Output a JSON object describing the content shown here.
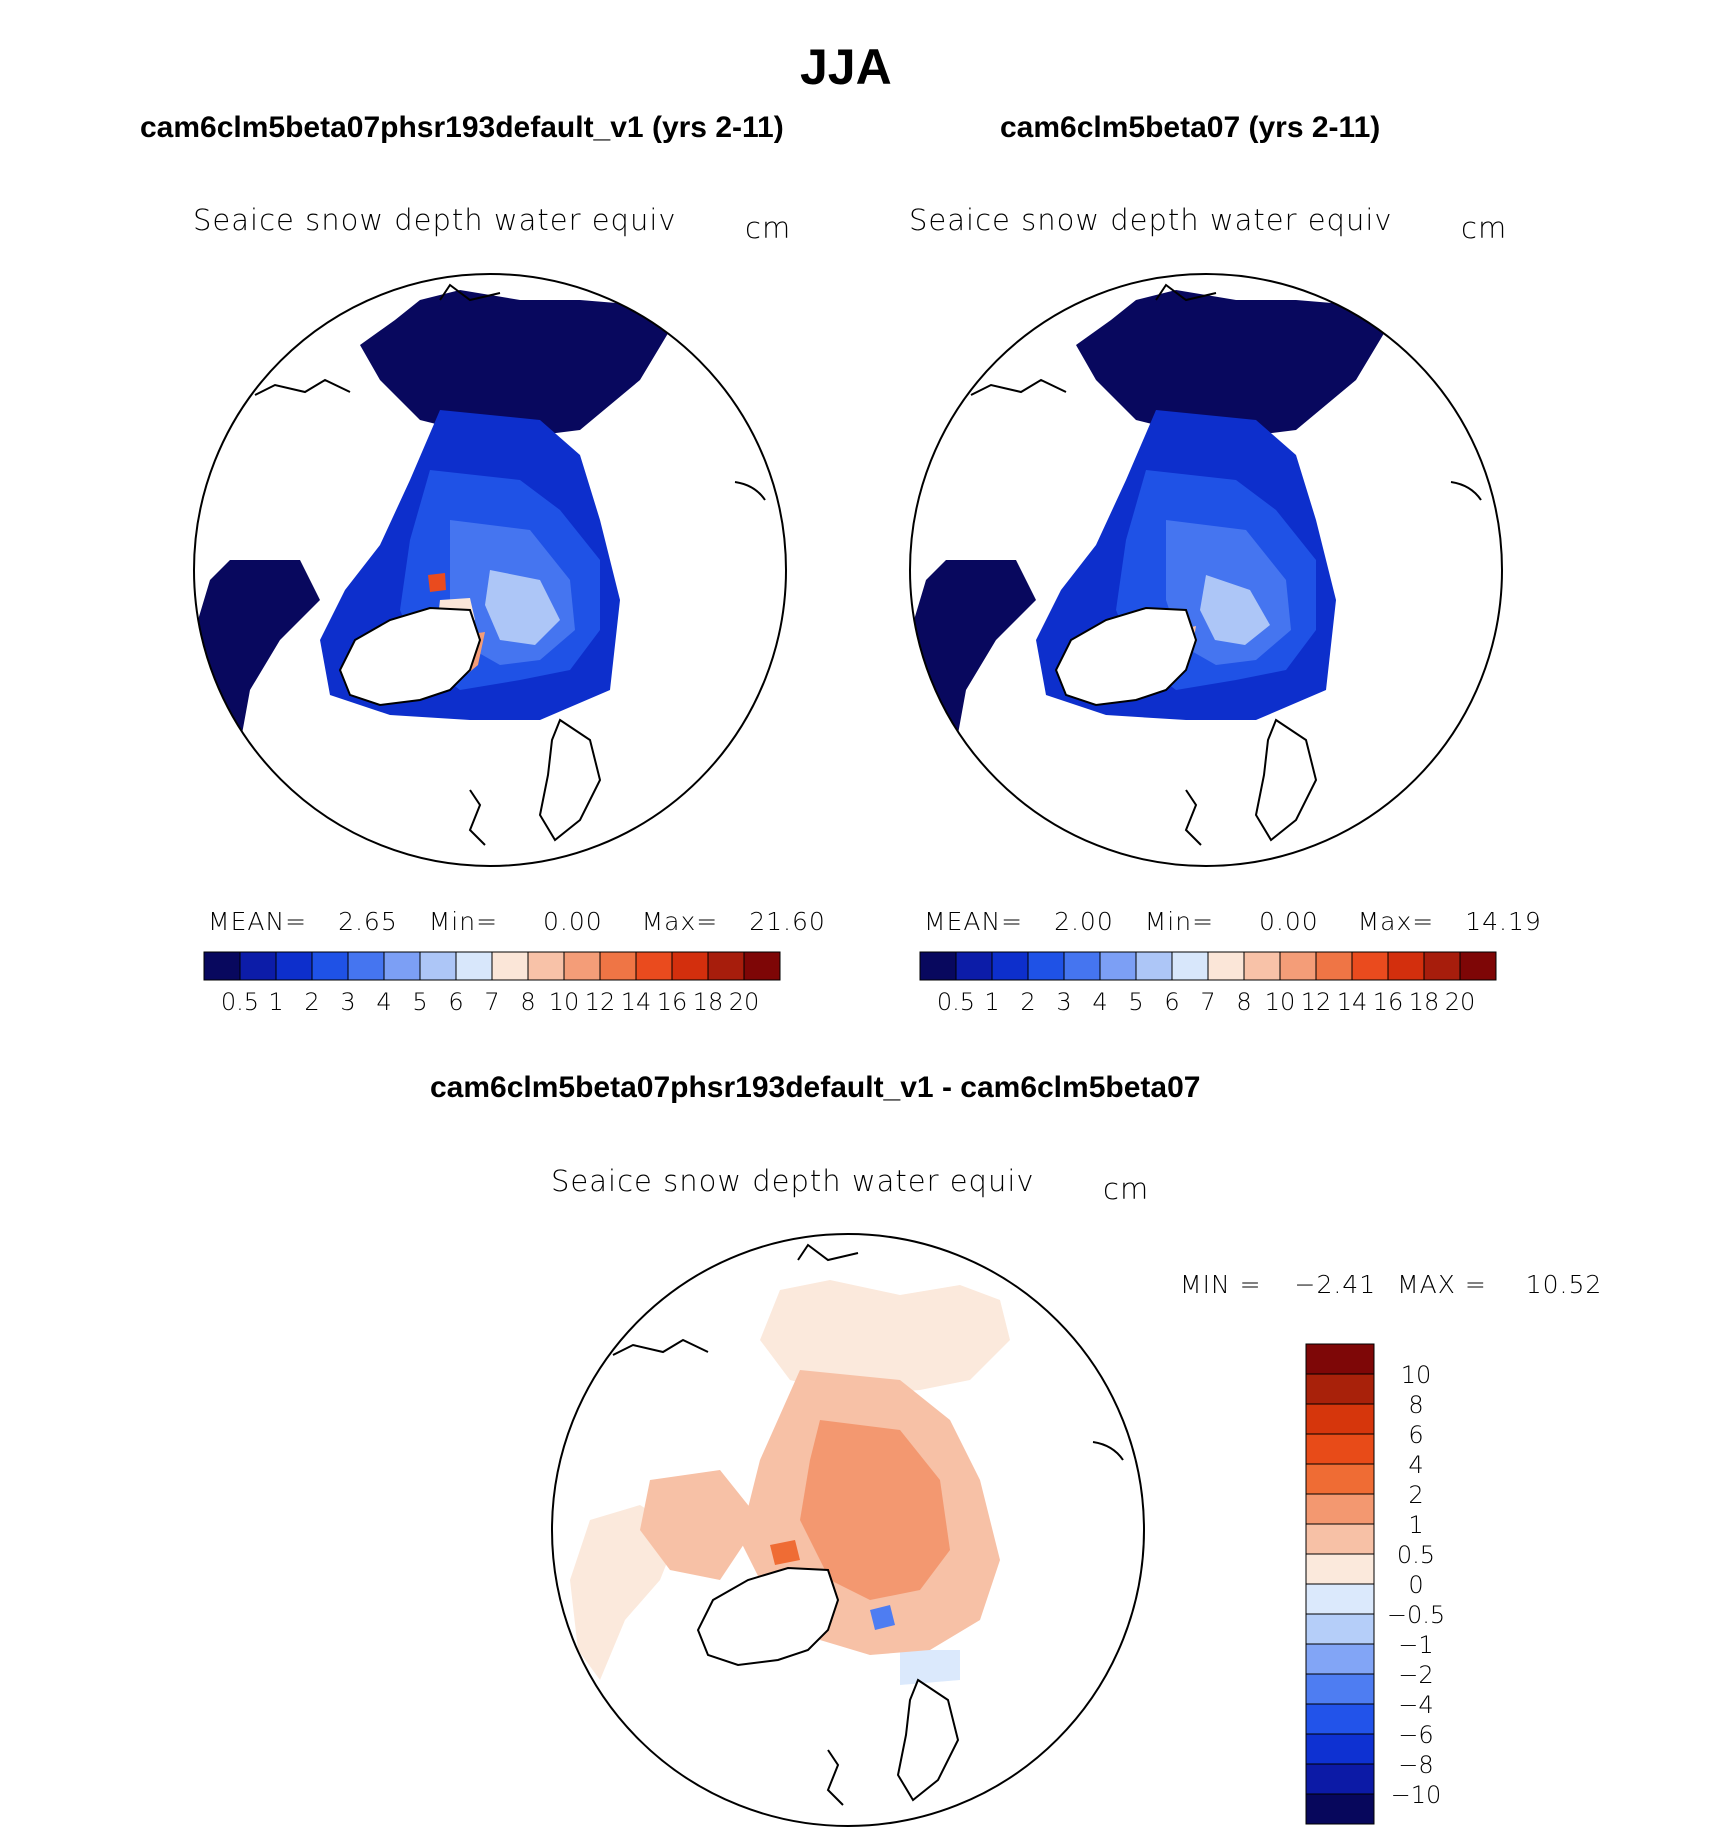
{
  "page_title": "JJA",
  "colors": {
    "seq": [
      "#08085e",
      "#0c1ca8",
      "#0d2fcc",
      "#1f52e6",
      "#4575f0",
      "#7c9ff5",
      "#adc6f7",
      "#d8e7fb",
      "#fbe6d8",
      "#f8c2a8",
      "#f49d78",
      "#ef7545",
      "#ea4b1e",
      "#d32f0d",
      "#a71d0c",
      "#7e0606"
    ],
    "div": [
      "#07075c",
      "#0c1aa6",
      "#0e31d2",
      "#2253ea",
      "#4e7df2",
      "#82a5f6",
      "#b5cef9",
      "#dbe9fc",
      "#fbe9dc",
      "#f7c1a6",
      "#f39870",
      "#ef6c34",
      "#e84b18",
      "#d6360c",
      "#a8210a",
      "#7e0707"
    ]
  },
  "chart_data": [
    {
      "type": "polar-map",
      "title": "cam6clm5beta07phsr193default_v1 (yrs 2-11)",
      "variable": "Seaice snow depth water equiv",
      "units": "cm",
      "stats": {
        "mean_label": "MEAN=",
        "mean": "2.65",
        "min_label": "Min=",
        "min": "0.00",
        "max_label": "Max=",
        "max": "21.60"
      },
      "colorbar_ticks": [
        "0.5",
        "1",
        "2",
        "3",
        "4",
        "5",
        "6",
        "7",
        "8",
        "10",
        "12",
        "14",
        "16",
        "18",
        "20"
      ]
    },
    {
      "type": "polar-map",
      "title": "cam6clm5beta07 (yrs 2-11)",
      "variable": "Seaice snow depth water equiv",
      "units": "cm",
      "stats": {
        "mean_label": "MEAN=",
        "mean": "2.00",
        "min_label": "Min=",
        "min": "0.00",
        "max_label": "Max=",
        "max": "14.19"
      },
      "colorbar_ticks": [
        "0.5",
        "1",
        "2",
        "3",
        "4",
        "5",
        "6",
        "7",
        "8",
        "10",
        "12",
        "14",
        "16",
        "18",
        "20"
      ]
    },
    {
      "type": "polar-map",
      "title": "cam6clm5beta07phsr193default_v1 - cam6clm5beta07",
      "variable": "Seaice snow depth water equiv",
      "units": "cm",
      "stats": {
        "min_label": "MIN =",
        "min": "−2.41",
        "max_label": "MAX =",
        "max": "10.52"
      },
      "colorbar_ticks": [
        "10",
        "8",
        "6",
        "4",
        "2",
        "1",
        "0.5",
        "0",
        "−0.5",
        "−1",
        "−2",
        "−4",
        "−6",
        "−8",
        "−10"
      ]
    }
  ]
}
